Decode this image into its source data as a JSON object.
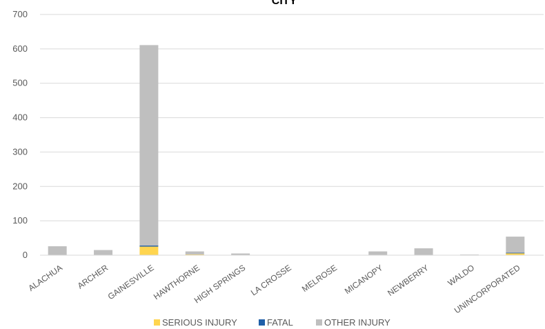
{
  "chart_data": {
    "type": "bar",
    "stacked": true,
    "title": "CITY",
    "categories": [
      "ALACHUA",
      "ARCHER",
      "GAINESVILLE",
      "HAWTHORNE",
      "HIGH SPRINGS",
      "LA CROSSE",
      "MELROSE",
      "MICANOPY",
      "NEWBERRY",
      "WALDO",
      "UNINCORPORATED"
    ],
    "series": [
      {
        "name": "SERIOUS INJURY",
        "color": "#FFD54F",
        "values": [
          1,
          1,
          25,
          2,
          1,
          0,
          0,
          1,
          1,
          0,
          6
        ]
      },
      {
        "name": "FATAL",
        "color": "#1F5FA8",
        "values": [
          0,
          0,
          3,
          0,
          0,
          0,
          0,
          0,
          0,
          0,
          1
        ]
      },
      {
        "name": "OTHER INJURY",
        "color": "#BFBFBF",
        "values": [
          25,
          14,
          583,
          9,
          4,
          1,
          1,
          10,
          19,
          2,
          47
        ]
      }
    ],
    "ylim": [
      0,
      700
    ],
    "yticks": [
      0,
      100,
      200,
      300,
      400,
      500,
      600,
      700
    ],
    "grid": true,
    "legend_position": "bottom"
  }
}
